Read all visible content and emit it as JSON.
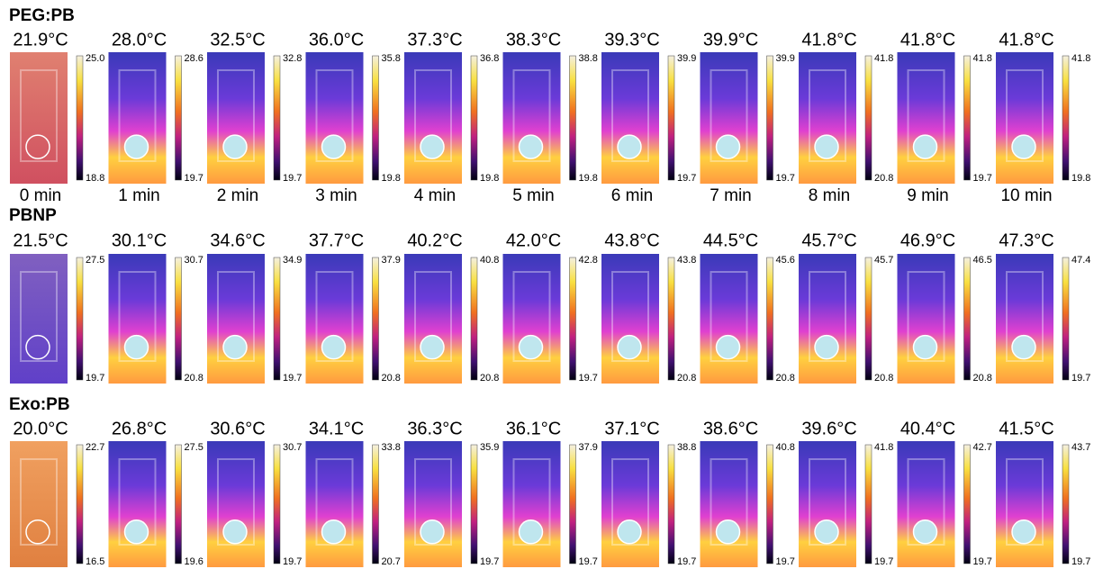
{
  "rows": [
    {
      "title": "PEG:PB",
      "panels": [
        {
          "temp": "21.9°C",
          "max": "25.0",
          "min": "18.8"
        },
        {
          "temp": "28.0°C",
          "max": "28.6",
          "min": "19.7"
        },
        {
          "temp": "32.5°C",
          "max": "32.8",
          "min": "19.7"
        },
        {
          "temp": "36.0°C",
          "max": "35.8",
          "min": "19.8"
        },
        {
          "temp": "37.3°C",
          "max": "36.8",
          "min": "19.8"
        },
        {
          "temp": "38.3°C",
          "max": "38.8",
          "min": "19.8"
        },
        {
          "temp": "39.3°C",
          "max": "39.9",
          "min": "19.7"
        },
        {
          "temp": "39.9°C",
          "max": "39.9",
          "min": "19.7"
        },
        {
          "temp": "41.8°C",
          "max": "41.8",
          "min": "20.8"
        },
        {
          "temp": "41.8°C",
          "max": "41.8",
          "min": "19.7"
        },
        {
          "temp": "41.8°C",
          "max": "41.8",
          "min": "19.8"
        }
      ]
    },
    {
      "title": "PBNP",
      "panels": [
        {
          "temp": "21.5°C",
          "max": "27.5",
          "min": "19.7"
        },
        {
          "temp": "30.1°C",
          "max": "30.7",
          "min": "20.8"
        },
        {
          "temp": "34.6°C",
          "max": "34.9",
          "min": "19.7"
        },
        {
          "temp": "37.7°C",
          "max": "37.9",
          "min": "20.8"
        },
        {
          "temp": "40.2°C",
          "max": "40.8",
          "min": "20.8"
        },
        {
          "temp": "42.0°C",
          "max": "42.8",
          "min": "19.7"
        },
        {
          "temp": "43.8°C",
          "max": "43.8",
          "min": "20.8"
        },
        {
          "temp": "44.5°C",
          "max": "45.6",
          "min": "20.8"
        },
        {
          "temp": "45.7°C",
          "max": "45.7",
          "min": "20.8"
        },
        {
          "temp": "46.9°C",
          "max": "46.5",
          "min": "20.8"
        },
        {
          "temp": "47.3°C",
          "max": "47.4",
          "min": "19.7"
        }
      ]
    },
    {
      "title": "Exo:PB",
      "panels": [
        {
          "temp": "20.0°C",
          "max": "22.7",
          "min": "16.5"
        },
        {
          "temp": "26.8°C",
          "max": "27.5",
          "min": "19.6"
        },
        {
          "temp": "30.6°C",
          "max": "30.7",
          "min": "19.7"
        },
        {
          "temp": "34.1°C",
          "max": "33.8",
          "min": "20.7"
        },
        {
          "temp": "36.3°C",
          "max": "35.9",
          "min": "19.7"
        },
        {
          "temp": "36.1°C",
          "max": "37.9",
          "min": "19.7"
        },
        {
          "temp": "37.1°C",
          "max": "38.8",
          "min": "19.7"
        },
        {
          "temp": "38.6°C",
          "max": "40.8",
          "min": "19.7"
        },
        {
          "temp": "39.6°C",
          "max": "41.8",
          "min": "19.7"
        },
        {
          "temp": "40.4°C",
          "max": "42.7",
          "min": "19.7"
        },
        {
          "temp": "41.5°C",
          "max": "43.7",
          "min": "19.7"
        }
      ]
    }
  ],
  "times": [
    "0 min",
    "1 min",
    "2 min",
    "3 min",
    "4 min",
    "5 min",
    "6 min",
    "7 min",
    "8 min",
    "9 min",
    "10 min"
  ]
}
